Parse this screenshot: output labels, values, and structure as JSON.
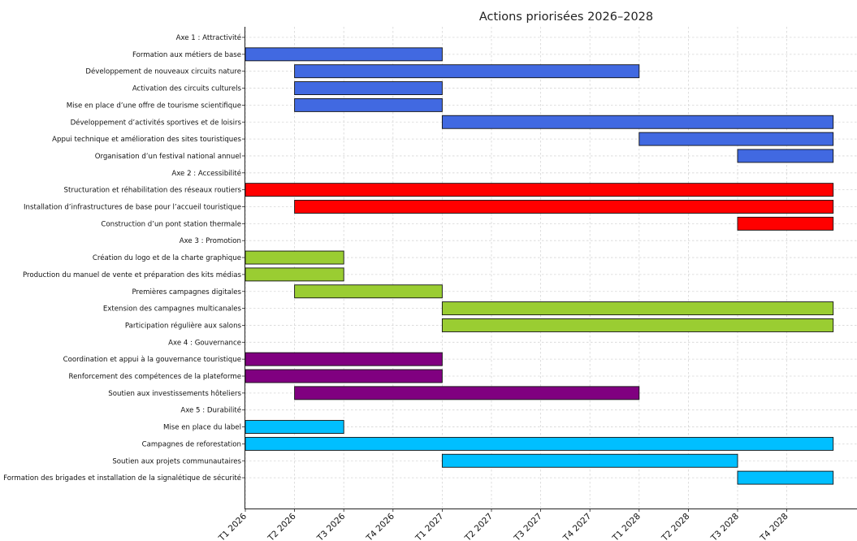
{
  "chart_data": {
    "type": "gantt",
    "title": "Actions priorisées 2026–2028",
    "x_ticks": [
      "T1 2026",
      "T2 2026",
      "T3 2026",
      "T4 2026",
      "T1 2027",
      "T2 2027",
      "T3 2027",
      "T4 2027",
      "T1 2028",
      "T2 2028",
      "T3 2028",
      "T4 2028"
    ],
    "x_unit": "quarter",
    "xlim": [
      0,
      12.4
    ],
    "grid": true,
    "colors": {
      "axe1": "#4169E1",
      "axe2": "#FF0000",
      "axe3": "#9ACD32",
      "axe4": "#800080",
      "axe5": "#00BFFF"
    },
    "rows": [
      {
        "label": "Axe 1 : Attractivité",
        "header": true
      },
      {
        "label": "Formation aux métiers de base",
        "start": "T1 2026",
        "end": "T1 2027",
        "axe": "axe1"
      },
      {
        "label": "Développement de nouveaux circuits nature",
        "start": "T2 2026",
        "end": "T1 2028",
        "axe": "axe1"
      },
      {
        "label": "Activation des circuits culturels",
        "start": "T2 2026",
        "end": "T1 2027",
        "axe": "axe1"
      },
      {
        "label": "Mise en place d’une offre de tourisme scientifique",
        "start": "T2 2026",
        "end": "T1 2027",
        "axe": "axe1"
      },
      {
        "label": "Développement d’activités sportives et de loisirs",
        "start": "T1 2027",
        "end": "end 2028",
        "axe": "axe1"
      },
      {
        "label": "Appui technique et amélioration des sites touristiques",
        "start": "T1 2028",
        "end": "end 2028",
        "axe": "axe1"
      },
      {
        "label": "Organisation d’un festival national annuel",
        "start": "T3 2028",
        "end": "end 2028",
        "axe": "axe1"
      },
      {
        "label": "Axe 2 : Accessibilité",
        "header": true
      },
      {
        "label": "Structuration et réhabilitation des réseaux routiers",
        "start": "T1 2026",
        "end": "end 2028",
        "axe": "axe2"
      },
      {
        "label": "Installation d’infrastructures de base pour l’accueil touristique",
        "start": "T2 2026",
        "end": "end 2028",
        "axe": "axe2"
      },
      {
        "label": "Construction d’un pont station thermale",
        "start": "T3 2028",
        "end": "end 2028",
        "axe": "axe2"
      },
      {
        "label": "Axe 3 : Promotion",
        "header": true
      },
      {
        "label": "Création du logo et de la charte graphique",
        "start": "T1 2026",
        "end": "T3 2026",
        "axe": "axe3"
      },
      {
        "label": "Production du manuel de vente et préparation des kits médias",
        "start": "T1 2026",
        "end": "T3 2026",
        "axe": "axe3"
      },
      {
        "label": "Premières campagnes digitales",
        "start": "T2 2026",
        "end": "T1 2027",
        "axe": "axe3"
      },
      {
        "label": "Extension des campagnes multicanales",
        "start": "T1 2027",
        "end": "end 2028",
        "axe": "axe3"
      },
      {
        "label": "Participation régulière aux salons",
        "start": "T1 2027",
        "end": "end 2028",
        "axe": "axe3"
      },
      {
        "label": "Axe 4 : Gouvernance",
        "header": true
      },
      {
        "label": "Coordination et appui à la gouvernance touristique",
        "start": "T1 2026",
        "end": "T1 2027",
        "axe": "axe4"
      },
      {
        "label": "Renforcement des compétences de la plateforme",
        "start": "T1 2026",
        "end": "T1 2027",
        "axe": "axe4"
      },
      {
        "label": "Soutien aux investissements hôteliers",
        "start": "T2 2026",
        "end": "T1 2028",
        "axe": "axe4"
      },
      {
        "label": "Axe 5 : Durabilité",
        "header": true
      },
      {
        "label": "Mise en place du label",
        "start": "T1 2026",
        "end": "T3 2026",
        "axe": "axe5"
      },
      {
        "label": "Campagnes de reforestation",
        "start": "T1 2026",
        "end": "end 2028",
        "axe": "axe5"
      },
      {
        "label": "Soutien aux projets communautaires",
        "start": "T1 2027",
        "end": "T3 2028",
        "axe": "axe5"
      },
      {
        "label": "Formation des brigades et installation de la signalétique de sécurité",
        "start": "T3 2028",
        "end": "end 2028",
        "axe": "axe5"
      }
    ]
  }
}
